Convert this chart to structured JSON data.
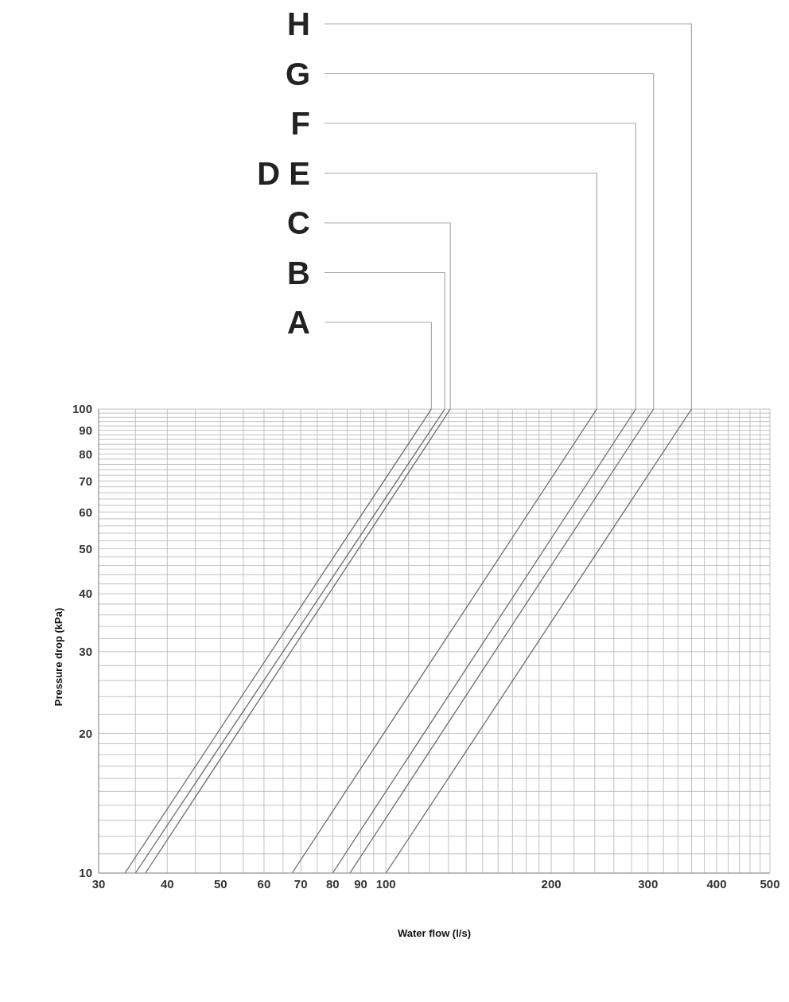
{
  "chart_data": {
    "type": "line",
    "xlabel": "Water flow (l/s)",
    "ylabel": "Pressure drop (kPa)",
    "log": "xy",
    "grid": true,
    "line_style": "solid",
    "xlim": [
      30,
      500
    ],
    "ylim": [
      10,
      100
    ],
    "xticks": [
      30,
      {
        "value": 35,
        "label": null
      },
      40,
      {
        "value": 45,
        "label": null
      },
      50,
      {
        "value": 55,
        "label": null
      },
      60,
      {
        "value": 65,
        "label": null
      },
      70,
      {
        "value": 75,
        "label": null
      },
      80,
      {
        "value": 85,
        "label": null
      },
      90,
      {
        "value": 95,
        "label": null
      },
      100,
      {
        "value": 110,
        "label": null
      },
      {
        "value": 120,
        "label": null
      },
      {
        "value": 130,
        "label": null
      },
      {
        "value": 140,
        "label": null
      },
      {
        "value": 150,
        "label": null
      },
      {
        "value": 160,
        "label": null
      },
      {
        "value": 170,
        "label": null
      },
      {
        "value": 180,
        "label": null
      },
      {
        "value": 190,
        "label": null
      },
      200,
      {
        "value": 220,
        "label": null
      },
      {
        "value": 240,
        "label": null
      },
      {
        "value": 260,
        "label": null
      },
      {
        "value": 280,
        "label": null
      },
      300,
      {
        "value": 320,
        "label": null
      },
      {
        "value": 340,
        "label": null
      },
      {
        "value": 360,
        "label": null
      },
      {
        "value": 380,
        "label": null
      },
      400,
      {
        "value": 420,
        "label": null
      },
      {
        "value": 440,
        "label": null
      },
      {
        "value": 460,
        "label": null
      },
      {
        "value": 480,
        "label": null
      },
      500
    ],
    "yticks": [
      10,
      {
        "value": 11,
        "label": null
      },
      {
        "value": 12,
        "label": null
      },
      {
        "value": 13,
        "label": null
      },
      {
        "value": 14,
        "label": null
      },
      {
        "value": 15,
        "label": null
      },
      {
        "value": 16,
        "label": null
      },
      {
        "value": 17,
        "label": null
      },
      {
        "value": 18,
        "label": null
      },
      {
        "value": 19,
        "label": null
      },
      20,
      {
        "value": 22,
        "label": null
      },
      {
        "value": 24,
        "label": null
      },
      {
        "value": 26,
        "label": null
      },
      {
        "value": 28,
        "label": null
      },
      30,
      {
        "value": 32,
        "label": null
      },
      {
        "value": 34,
        "label": null
      },
      {
        "value": 36,
        "label": null
      },
      {
        "value": 38,
        "label": null
      },
      40,
      {
        "value": 42,
        "label": null
      },
      {
        "value": 44,
        "label": null
      },
      {
        "value": 46,
        "label": null
      },
      {
        "value": 48,
        "label": null
      },
      50,
      {
        "value": 52,
        "label": null
      },
      {
        "value": 54,
        "label": null
      },
      {
        "value": 56,
        "label": null
      },
      {
        "value": 58,
        "label": null
      },
      60,
      {
        "value": 62,
        "label": null
      },
      {
        "value": 64,
        "label": null
      },
      {
        "value": 66,
        "label": null
      },
      {
        "value": 68,
        "label": null
      },
      70,
      {
        "value": 72,
        "label": null
      },
      {
        "value": 74,
        "label": null
      },
      {
        "value": 76,
        "label": null
      },
      {
        "value": 78,
        "label": null
      },
      80,
      {
        "value": 82,
        "label": null
      },
      {
        "value": 84,
        "label": null
      },
      {
        "value": 86,
        "label": null
      },
      {
        "value": 88,
        "label": null
      },
      90,
      {
        "value": 92,
        "label": null
      },
      {
        "value": 94,
        "label": null
      },
      {
        "value": 96,
        "label": null
      },
      {
        "value": 98,
        "label": null
      },
      100
    ],
    "series": [
      {
        "name": "A",
        "color": "#6e6e6e",
        "x": [
          33.5,
          121
        ],
        "values": [
          10,
          100
        ]
      },
      {
        "name": "B",
        "color": "#6e6e6e",
        "x": [
          35,
          128
        ],
        "values": [
          10,
          100
        ]
      },
      {
        "name": "C",
        "color": "#6e6e6e",
        "x": [
          36.5,
          131
        ],
        "values": [
          10,
          100
        ]
      },
      {
        "name": "D E",
        "color": "#6e6e6e",
        "x": [
          67.5,
          242
        ],
        "values": [
          10,
          100
        ]
      },
      {
        "name": "F",
        "color": "#6e6e6e",
        "x": [
          80,
          285
        ],
        "values": [
          10,
          100
        ]
      },
      {
        "name": "G",
        "color": "#6e6e6e",
        "x": [
          86,
          307
        ],
        "values": [
          10,
          100
        ]
      },
      {
        "name": "H",
        "color": "#6e6e6e",
        "x": [
          100,
          360
        ],
        "values": [
          10,
          100
        ]
      }
    ]
  }
}
